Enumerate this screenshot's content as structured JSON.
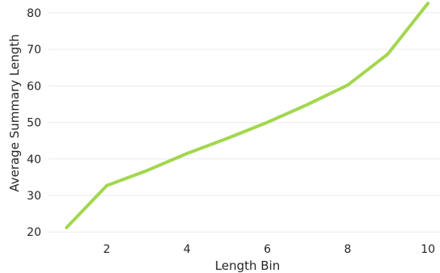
{
  "chart_data": {
    "type": "line",
    "xlabel": "Length Bin",
    "ylabel": "Average Summary Length",
    "xlim": [
      0.55,
      10.3
    ],
    "ylim": [
      18.5,
      83.5
    ],
    "xticks": [
      2,
      4,
      6,
      8,
      10
    ],
    "yticks": [
      20,
      30,
      40,
      50,
      60,
      70,
      80
    ],
    "grid": true,
    "color": "#a2d74e",
    "series": [
      {
        "x": [
          1,
          2,
          3,
          4,
          5,
          6,
          7,
          8,
          9,
          10
        ],
        "values": [
          21.2,
          32.7,
          36.8,
          41.5,
          45.6,
          50.0,
          54.9,
          60.2,
          68.7,
          82.6
        ]
      }
    ]
  }
}
